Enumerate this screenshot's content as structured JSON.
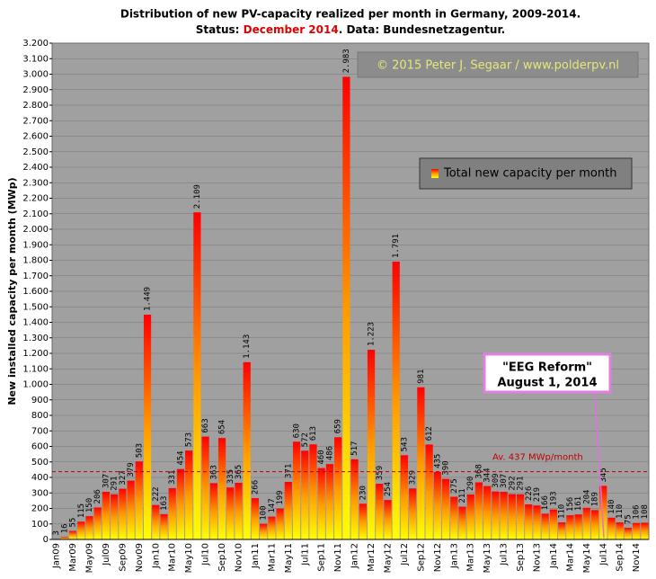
{
  "chart_data": {
    "type": "bar",
    "title": "Distribution  of new PV-capacity realized per month in Germany, 2009-2014.",
    "subtitle_parts": [
      "Status: ",
      "December 2014",
      ". Data: Bundesnetzagentur."
    ],
    "ylabel": "New installed capacity per month (MWp)",
    "legend": "Total new capacity per month",
    "copyright": "© 2015 Peter J. Segaar / www.polderpv.nl",
    "callout": [
      "\"EEG Reform\"",
      "August 1, 2014"
    ],
    "average": {
      "value": 437,
      "label": "Av. 437 MWp/month"
    },
    "gradient": [
      "#ffff00",
      "#ff9900",
      "#ff0000"
    ],
    "grid": true,
    "categories": [
      "Jan09",
      null,
      "Mar09",
      null,
      "May09",
      null,
      "Jul09",
      null,
      "Sep09",
      null,
      "Nov09",
      null,
      "Jan10",
      null,
      "Mar10",
      null,
      "May10",
      null,
      "Jul10",
      null,
      "Sep10",
      null,
      "Nov10",
      null,
      "Jan11",
      null,
      "Mar11",
      null,
      "May11",
      null,
      "Jul11",
      null,
      "Sep11",
      null,
      "Nov11",
      null,
      "Jan12",
      null,
      "Mar12",
      null,
      "May12",
      null,
      "Jul12",
      null,
      "Sep12",
      null,
      "Nov12",
      null,
      "Jan13",
      null,
      "Mar13",
      null,
      "May13",
      null,
      "Jul13",
      null,
      "Sep13",
      null,
      "Nov13",
      null,
      "Jan14",
      null,
      "Mar14",
      null,
      "May14",
      null,
      "Jul14",
      null,
      "Sep14",
      null,
      "Nov14",
      null
    ],
    "values": [
      3,
      16,
      55,
      115,
      150,
      206,
      307,
      291,
      327,
      379,
      503,
      1449,
      222,
      163,
      331,
      454,
      573,
      2109,
      663,
      363,
      654,
      335,
      365,
      1143,
      266,
      100,
      147,
      199,
      371,
      630,
      572,
      613,
      460,
      486,
      659,
      2983,
      517,
      230,
      1223,
      359,
      254,
      1791,
      543,
      329,
      981,
      612,
      435,
      390,
      275,
      211,
      290,
      368,
      344,
      309,
      307,
      292,
      291,
      226,
      219,
      166,
      193,
      110,
      156,
      161,
      204,
      189,
      345,
      140,
      110,
      75,
      106,
      108
    ],
    "value_labels": [
      "3",
      "16",
      "55",
      "115",
      "150",
      "206",
      "307",
      "291",
      "327",
      "379",
      "503",
      "1.449",
      "222",
      "163",
      "331",
      "454",
      "573",
      "2.109",
      "663",
      "363",
      "654",
      "335",
      "365",
      "1.143",
      "266",
      "100",
      "147",
      "199",
      "371",
      "630",
      "572",
      "613",
      "460",
      "486",
      "659",
      "2.983",
      "517",
      "230",
      "1.223",
      "359",
      "254",
      "1.791",
      "543",
      "329",
      "981",
      "612",
      "435",
      "390",
      "275",
      "211",
      "290",
      "368",
      "344",
      "309",
      "307",
      "292",
      "291",
      "226",
      "219",
      "166",
      "193",
      "110",
      "156",
      "161",
      "204",
      "189",
      "345",
      "140",
      "110",
      "75",
      "106",
      "108"
    ],
    "ylim": [
      0,
      3200
    ],
    "yticks": [
      0,
      100,
      200,
      300,
      400,
      500,
      600,
      700,
      800,
      900,
      {
        "value": 1000,
        "label": "1.000"
      },
      {
        "value": 1100,
        "label": "1.100"
      },
      {
        "value": 1200,
        "label": "1.200"
      },
      {
        "value": 1300,
        "label": "1.300"
      },
      {
        "value": 1400,
        "label": "1.400"
      },
      {
        "value": 1500,
        "label": "1.500"
      },
      {
        "value": 1600,
        "label": "1.600"
      },
      {
        "value": 1700,
        "label": "1.700"
      },
      {
        "value": 1800,
        "label": "1.800"
      },
      {
        "value": 1900,
        "label": "1.900"
      },
      {
        "value": 2000,
        "label": "2.000"
      },
      {
        "value": 2100,
        "label": "2.100"
      },
      {
        "value": 2200,
        "label": "2.200"
      },
      {
        "value": 2300,
        "label": "2.300"
      },
      {
        "value": 2400,
        "label": "2.400"
      },
      {
        "value": 2500,
        "label": "2.500"
      },
      {
        "value": 2600,
        "label": "2.600"
      },
      {
        "value": 2700,
        "label": "2.700"
      },
      {
        "value": 2800,
        "label": "2.800"
      },
      {
        "value": 2900,
        "label": "2.900"
      },
      {
        "value": 3000,
        "label": "3.000"
      },
      {
        "value": 3100,
        "label": "3.100"
      },
      {
        "value": 3200,
        "label": "3.200"
      }
    ]
  }
}
